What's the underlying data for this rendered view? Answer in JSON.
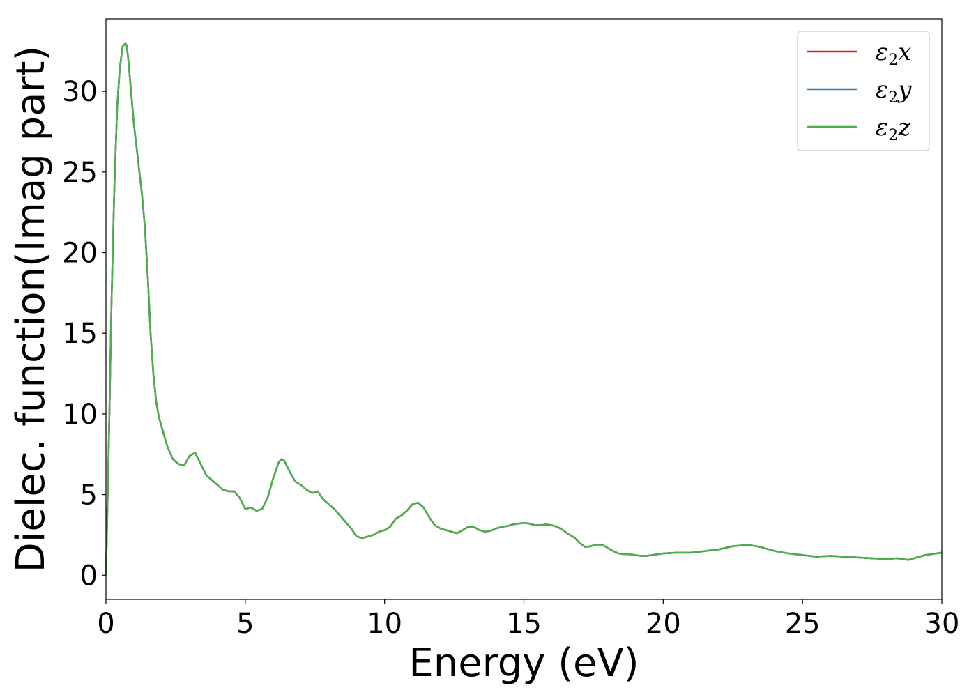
{
  "chart_data": {
    "type": "line",
    "title": "",
    "xlabel": "Energy (eV)",
    "ylabel": "Dielec. function(Imag part)",
    "xlim": [
      0,
      30
    ],
    "ylim": [
      -1.5,
      34.5
    ],
    "xticks": [
      0,
      5,
      10,
      15,
      20,
      25,
      30
    ],
    "yticks": [
      0,
      5,
      10,
      15,
      20,
      25,
      30
    ],
    "grid": false,
    "legend_position": "top-right",
    "series": [
      {
        "name_base": "ε",
        "name_sub": "2",
        "name_suffix": "x",
        "color": "#e41a1c",
        "x": [
          0.0,
          0.1,
          0.2,
          0.3,
          0.4,
          0.5,
          0.6,
          0.7,
          0.75,
          0.8,
          0.9,
          1.0,
          1.1,
          1.2,
          1.3,
          1.4,
          1.5,
          1.6,
          1.7,
          1.8,
          1.9,
          2.0,
          2.2,
          2.4,
          2.6,
          2.8,
          3.0,
          3.2,
          3.4,
          3.6,
          3.8,
          4.0,
          4.2,
          4.4,
          4.6,
          4.8,
          5.0,
          5.2,
          5.4,
          5.6,
          5.8,
          6.0,
          6.2,
          6.3,
          6.4,
          6.6,
          6.8,
          7.0,
          7.2,
          7.4,
          7.6,
          7.8,
          8.0,
          8.2,
          8.4,
          8.6,
          8.8,
          9.0,
          9.2,
          9.4,
          9.6,
          9.8,
          10.0,
          10.2,
          10.4,
          10.6,
          10.8,
          11.0,
          11.2,
          11.4,
          11.6,
          11.8,
          12.0,
          12.2,
          12.4,
          12.6,
          12.8,
          13.0,
          13.2,
          13.4,
          13.6,
          13.8,
          14.0,
          14.2,
          14.4,
          14.6,
          14.8,
          15.0,
          15.2,
          15.4,
          15.6,
          15.8,
          16.0,
          16.2,
          16.4,
          16.6,
          16.8,
          17.0,
          17.2,
          17.4,
          17.6,
          17.8,
          18.0,
          18.2,
          18.4,
          18.6,
          18.8,
          19.0,
          19.2,
          19.4,
          19.6,
          19.8,
          20.0,
          20.5,
          21.0,
          21.5,
          22.0,
          22.5,
          22.8,
          23.0,
          23.5,
          24.0,
          24.5,
          25.0,
          25.5,
          26.0,
          26.5,
          27.0,
          27.5,
          28.0,
          28.4,
          28.8,
          29.0,
          29.4,
          29.8,
          30.0
        ],
        "y": [
          0.0,
          8.0,
          17.0,
          24.0,
          29.0,
          31.5,
          32.8,
          33.0,
          32.8,
          32.0,
          30.0,
          28.0,
          26.5,
          25.0,
          23.5,
          21.5,
          18.5,
          15.0,
          12.5,
          10.8,
          9.8,
          9.2,
          8.0,
          7.2,
          6.9,
          6.8,
          7.4,
          7.6,
          6.9,
          6.2,
          5.9,
          5.6,
          5.3,
          5.2,
          5.2,
          4.8,
          4.1,
          4.2,
          4.0,
          4.1,
          4.8,
          6.0,
          7.0,
          7.2,
          7.1,
          6.4,
          5.8,
          5.6,
          5.3,
          5.1,
          5.2,
          4.7,
          4.4,
          4.1,
          3.7,
          3.3,
          2.9,
          2.4,
          2.3,
          2.4,
          2.5,
          2.7,
          2.8,
          3.0,
          3.5,
          3.7,
          4.0,
          4.4,
          4.5,
          4.2,
          3.6,
          3.1,
          2.9,
          2.8,
          2.7,
          2.6,
          2.8,
          3.0,
          3.0,
          2.8,
          2.7,
          2.75,
          2.9,
          3.0,
          3.05,
          3.15,
          3.2,
          3.25,
          3.2,
          3.1,
          3.1,
          3.15,
          3.1,
          3.0,
          2.8,
          2.55,
          2.35,
          2.0,
          1.75,
          1.8,
          1.9,
          1.9,
          1.7,
          1.5,
          1.35,
          1.3,
          1.3,
          1.25,
          1.2,
          1.2,
          1.25,
          1.3,
          1.35,
          1.4,
          1.4,
          1.5,
          1.6,
          1.8,
          1.85,
          1.9,
          1.75,
          1.5,
          1.35,
          1.25,
          1.15,
          1.2,
          1.15,
          1.1,
          1.05,
          1.0,
          1.05,
          0.95,
          1.05,
          1.25,
          1.35,
          1.4
        ]
      },
      {
        "name_base": "ε",
        "name_sub": "2",
        "name_suffix": "y",
        "color": "#377eb8",
        "x": [
          0.0,
          0.1,
          0.2,
          0.3,
          0.4,
          0.5,
          0.6,
          0.7,
          0.75,
          0.8,
          0.9,
          1.0,
          1.1,
          1.2,
          1.3,
          1.4,
          1.5,
          1.6,
          1.7,
          1.8,
          1.9,
          2.0,
          2.2,
          2.4,
          2.6,
          2.8,
          3.0,
          3.2,
          3.4,
          3.6,
          3.8,
          4.0,
          4.2,
          4.4,
          4.6,
          4.8,
          5.0,
          5.2,
          5.4,
          5.6,
          5.8,
          6.0,
          6.2,
          6.3,
          6.4,
          6.6,
          6.8,
          7.0,
          7.2,
          7.4,
          7.6,
          7.8,
          8.0,
          8.2,
          8.4,
          8.6,
          8.8,
          9.0,
          9.2,
          9.4,
          9.6,
          9.8,
          10.0,
          10.2,
          10.4,
          10.6,
          10.8,
          11.0,
          11.2,
          11.4,
          11.6,
          11.8,
          12.0,
          12.2,
          12.4,
          12.6,
          12.8,
          13.0,
          13.2,
          13.4,
          13.6,
          13.8,
          14.0,
          14.2,
          14.4,
          14.6,
          14.8,
          15.0,
          15.2,
          15.4,
          15.6,
          15.8,
          16.0,
          16.2,
          16.4,
          16.6,
          16.8,
          17.0,
          17.2,
          17.4,
          17.6,
          17.8,
          18.0,
          18.2,
          18.4,
          18.6,
          18.8,
          19.0,
          19.2,
          19.4,
          19.6,
          19.8,
          20.0,
          20.5,
          21.0,
          21.5,
          22.0,
          22.5,
          22.8,
          23.0,
          23.5,
          24.0,
          24.5,
          25.0,
          25.5,
          26.0,
          26.5,
          27.0,
          27.5,
          28.0,
          28.4,
          28.8,
          29.0,
          29.4,
          29.8,
          30.0
        ],
        "y": [
          0.0,
          8.0,
          17.0,
          24.0,
          29.0,
          31.5,
          32.8,
          33.0,
          32.8,
          32.0,
          30.0,
          28.0,
          26.5,
          25.0,
          23.5,
          21.5,
          18.5,
          15.0,
          12.5,
          10.8,
          9.8,
          9.2,
          8.0,
          7.2,
          6.9,
          6.8,
          7.4,
          7.6,
          6.9,
          6.2,
          5.9,
          5.6,
          5.3,
          5.2,
          5.2,
          4.8,
          4.1,
          4.2,
          4.0,
          4.1,
          4.8,
          6.0,
          7.0,
          7.2,
          7.1,
          6.4,
          5.8,
          5.6,
          5.3,
          5.1,
          5.2,
          4.7,
          4.4,
          4.1,
          3.7,
          3.3,
          2.9,
          2.4,
          2.3,
          2.4,
          2.5,
          2.7,
          2.8,
          3.0,
          3.5,
          3.7,
          4.0,
          4.4,
          4.5,
          4.2,
          3.6,
          3.1,
          2.9,
          2.8,
          2.7,
          2.6,
          2.8,
          3.0,
          3.0,
          2.8,
          2.7,
          2.75,
          2.9,
          3.0,
          3.05,
          3.15,
          3.2,
          3.25,
          3.2,
          3.1,
          3.1,
          3.15,
          3.1,
          3.0,
          2.8,
          2.55,
          2.35,
          2.0,
          1.75,
          1.8,
          1.9,
          1.9,
          1.7,
          1.5,
          1.35,
          1.3,
          1.3,
          1.25,
          1.2,
          1.2,
          1.25,
          1.3,
          1.35,
          1.4,
          1.4,
          1.5,
          1.6,
          1.8,
          1.85,
          1.9,
          1.75,
          1.5,
          1.35,
          1.25,
          1.15,
          1.2,
          1.15,
          1.1,
          1.05,
          1.0,
          1.05,
          0.95,
          1.05,
          1.25,
          1.35,
          1.4
        ]
      },
      {
        "name_base": "ε",
        "name_sub": "2",
        "name_suffix": "z",
        "color": "#4daf4a",
        "x": [
          0.0,
          0.1,
          0.2,
          0.3,
          0.4,
          0.5,
          0.6,
          0.7,
          0.75,
          0.8,
          0.9,
          1.0,
          1.1,
          1.2,
          1.3,
          1.4,
          1.5,
          1.6,
          1.7,
          1.8,
          1.9,
          2.0,
          2.2,
          2.4,
          2.6,
          2.8,
          3.0,
          3.2,
          3.4,
          3.6,
          3.8,
          4.0,
          4.2,
          4.4,
          4.6,
          4.8,
          5.0,
          5.2,
          5.4,
          5.6,
          5.8,
          6.0,
          6.2,
          6.3,
          6.4,
          6.6,
          6.8,
          7.0,
          7.2,
          7.4,
          7.6,
          7.8,
          8.0,
          8.2,
          8.4,
          8.6,
          8.8,
          9.0,
          9.2,
          9.4,
          9.6,
          9.8,
          10.0,
          10.2,
          10.4,
          10.6,
          10.8,
          11.0,
          11.2,
          11.4,
          11.6,
          11.8,
          12.0,
          12.2,
          12.4,
          12.6,
          12.8,
          13.0,
          13.2,
          13.4,
          13.6,
          13.8,
          14.0,
          14.2,
          14.4,
          14.6,
          14.8,
          15.0,
          15.2,
          15.4,
          15.6,
          15.8,
          16.0,
          16.2,
          16.4,
          16.6,
          16.8,
          17.0,
          17.2,
          17.4,
          17.6,
          17.8,
          18.0,
          18.2,
          18.4,
          18.6,
          18.8,
          19.0,
          19.2,
          19.4,
          19.6,
          19.8,
          20.0,
          20.5,
          21.0,
          21.5,
          22.0,
          22.5,
          22.8,
          23.0,
          23.5,
          24.0,
          24.5,
          25.0,
          25.5,
          26.0,
          26.5,
          27.0,
          27.5,
          28.0,
          28.4,
          28.8,
          29.0,
          29.4,
          29.8,
          30.0
        ],
        "y": [
          0.0,
          8.0,
          17.0,
          24.0,
          29.0,
          31.5,
          32.8,
          33.0,
          32.8,
          32.0,
          30.0,
          28.0,
          26.5,
          25.0,
          23.5,
          21.5,
          18.5,
          15.0,
          12.5,
          10.8,
          9.8,
          9.2,
          8.0,
          7.2,
          6.9,
          6.8,
          7.4,
          7.6,
          6.9,
          6.2,
          5.9,
          5.6,
          5.3,
          5.2,
          5.2,
          4.8,
          4.1,
          4.2,
          4.0,
          4.1,
          4.8,
          6.0,
          7.0,
          7.2,
          7.1,
          6.4,
          5.8,
          5.6,
          5.3,
          5.1,
          5.2,
          4.7,
          4.4,
          4.1,
          3.7,
          3.3,
          2.9,
          2.4,
          2.3,
          2.4,
          2.5,
          2.7,
          2.8,
          3.0,
          3.5,
          3.7,
          4.0,
          4.4,
          4.5,
          4.2,
          3.6,
          3.1,
          2.9,
          2.8,
          2.7,
          2.6,
          2.8,
          3.0,
          3.0,
          2.8,
          2.7,
          2.75,
          2.9,
          3.0,
          3.05,
          3.15,
          3.2,
          3.25,
          3.2,
          3.1,
          3.1,
          3.15,
          3.1,
          3.0,
          2.8,
          2.55,
          2.35,
          2.0,
          1.75,
          1.8,
          1.9,
          1.9,
          1.7,
          1.5,
          1.35,
          1.3,
          1.3,
          1.25,
          1.2,
          1.2,
          1.25,
          1.3,
          1.35,
          1.4,
          1.4,
          1.5,
          1.6,
          1.8,
          1.85,
          1.9,
          1.75,
          1.5,
          1.35,
          1.25,
          1.15,
          1.2,
          1.15,
          1.1,
          1.05,
          1.0,
          1.05,
          0.95,
          1.05,
          1.25,
          1.35,
          1.4
        ]
      }
    ]
  }
}
